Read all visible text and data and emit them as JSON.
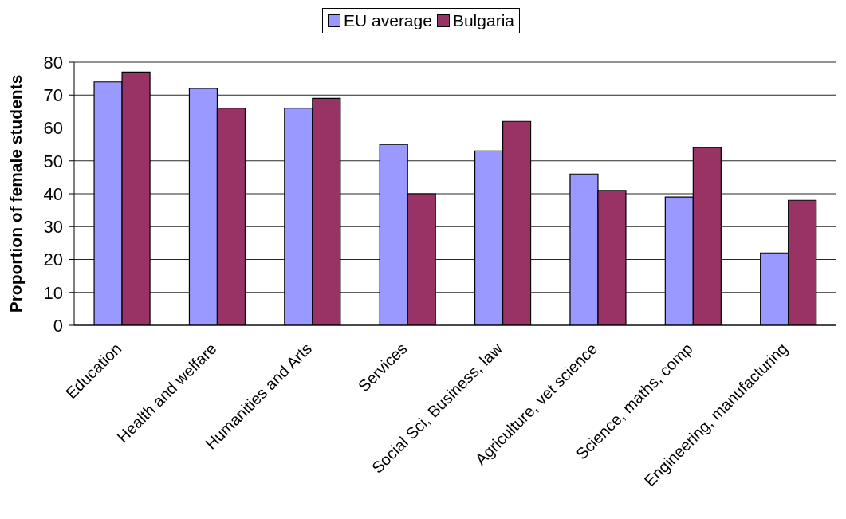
{
  "chart_data": {
    "type": "bar",
    "ylabel": "Proportion of female students",
    "categories": [
      "Education",
      "Health and welfare",
      "Humanities and Arts",
      "Services",
      "Social Sci, Business, law",
      "Agriculture, vet science",
      "Science, maths, comp",
      "Engineering, manufacturing"
    ],
    "series": [
      {
        "name": "EU average",
        "color": "#9999ff",
        "values": [
          74,
          72,
          66,
          55,
          53,
          46,
          39,
          22
        ]
      },
      {
        "name": "Bulgaria",
        "color": "#993366",
        "values": [
          77,
          66,
          69,
          40,
          62,
          41,
          54,
          38
        ]
      }
    ],
    "ylim": [
      0,
      80
    ],
    "yticks": [
      0,
      10,
      20,
      30,
      40,
      50,
      60,
      70,
      80
    ],
    "grid": "y",
    "legend": "top"
  }
}
